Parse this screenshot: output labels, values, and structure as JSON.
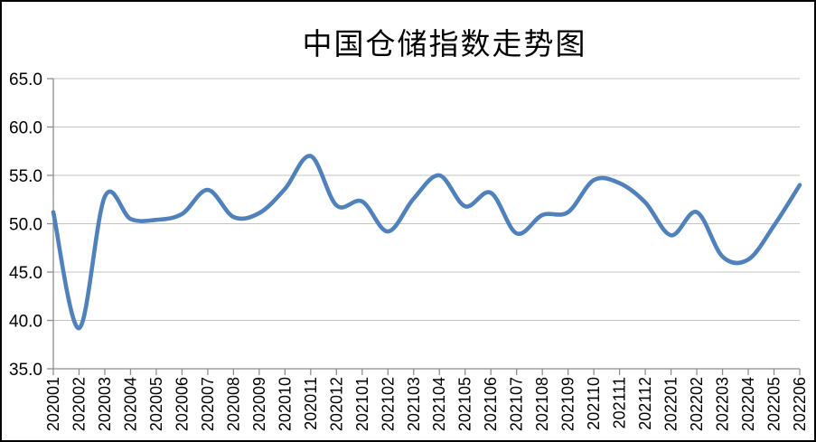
{
  "chart_data": {
    "type": "line",
    "title": "中国仓储指数走势图",
    "smooth": true,
    "grid": "horizontal",
    "legend": "none",
    "line_color": "#4F81BD",
    "gridline_color": "#C3C3C3",
    "axis_color": "#8E8E8E",
    "ylim": [
      35.0,
      65.0
    ],
    "ytick_step": 5.0,
    "ytick_labels": [
      "65.0",
      "60.0",
      "55.0",
      "50.0",
      "45.0",
      "40.0",
      "35.0"
    ],
    "x_label_rotation": -90,
    "categories": [
      "202001",
      "202002",
      "202003",
      "202004",
      "202005",
      "202006",
      "202007",
      "202008",
      "202009",
      "202010",
      "202011",
      "202012",
      "202101",
      "202102",
      "202103",
      "202104",
      "202105",
      "202106",
      "202107",
      "202108",
      "202109",
      "202110",
      "202111",
      "202112",
      "202201",
      "202202",
      "202203",
      "202204",
      "202205",
      "202206"
    ],
    "values": [
      51.2,
      39.2,
      52.8,
      50.5,
      50.4,
      51.0,
      53.5,
      50.7,
      51.1,
      53.6,
      57.0,
      51.9,
      52.3,
      49.2,
      52.6,
      55.0,
      51.8,
      53.2,
      49.0,
      50.9,
      51.2,
      54.5,
      54.2,
      52.2,
      48.8,
      51.2,
      46.6,
      46.3,
      49.8,
      54.0
    ]
  }
}
